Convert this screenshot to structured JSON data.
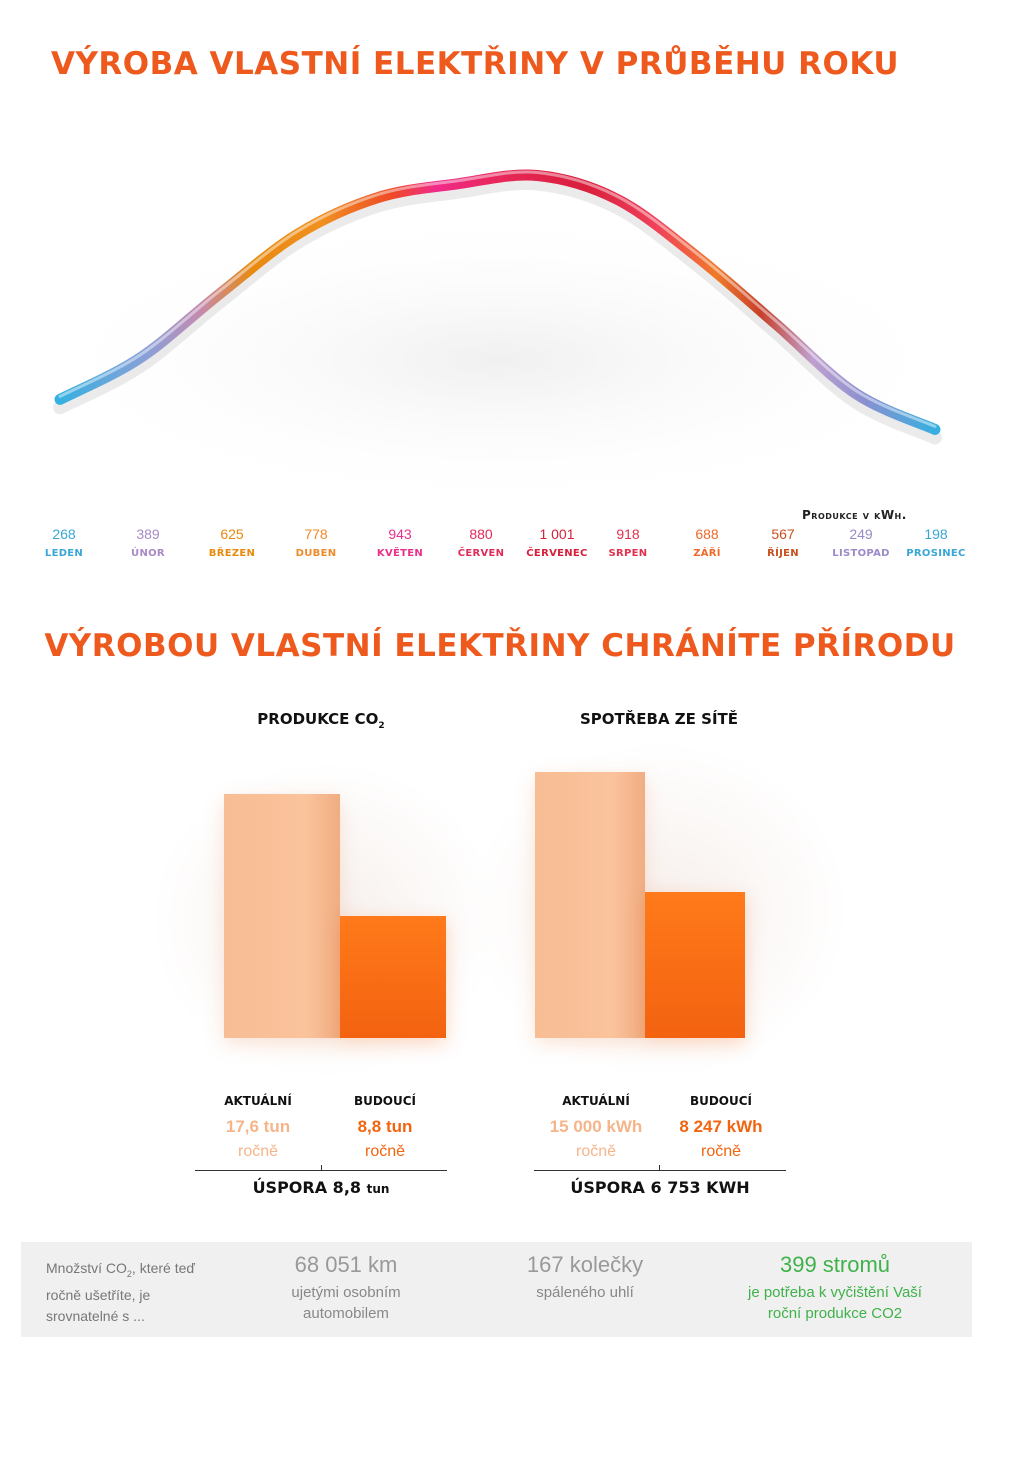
{
  "title1": "VÝROBA VLASTNÍ ELEKTŘINY V PRŮBĚHU ROKU",
  "title2": "VÝROBOU VLASTNÍ ELEKTŘINY CHRÁNÍTE PŘÍRODU",
  "unit_label": "Produkce v kWh.",
  "chart_data": [
    {
      "type": "line",
      "title": "VÝROBA VLASTNÍ ELEKTŘINY V PRŮBĚHU ROKU",
      "ylabel": "Produkce v kWh.",
      "categories": [
        "LEDEN",
        "ÚNOR",
        "BŘEZEN",
        "DUBEN",
        "KVĚTEN",
        "ČERVEN",
        "ČERVENEC",
        "SRPEN",
        "ZÁŘÍ",
        "ŘÍJEN",
        "LISTOPAD",
        "PROSINEC"
      ],
      "values": [
        268,
        389,
        625,
        778,
        943,
        880,
        1001,
        918,
        688,
        567,
        249,
        198
      ],
      "value_labels": [
        "268",
        "389",
        "625",
        "778",
        "943",
        "880",
        "1 001",
        "918",
        "688",
        "567",
        "249",
        "198"
      ],
      "colors": [
        "#3aa6d6",
        "#a88ac4",
        "#e88a0c",
        "#ef8a2a",
        "#e8308a",
        "#e02a5a",
        "#d61f3a",
        "#e0304e",
        "#ef6a2a",
        "#c8501e",
        "#9a8ac8",
        "#3aa6d6"
      ],
      "grid": true
    },
    {
      "type": "bar",
      "title": "PRODUKCE CO₂",
      "categories": [
        "AKTUÁLNÍ",
        "BUDOUCÍ"
      ],
      "values": [
        17.6,
        8.8
      ],
      "value_labels": [
        "17,6 tun",
        "8,8 tun"
      ],
      "unit": "ročně",
      "saving_label": "ÚSPORA 8,8",
      "saving_unit": "tun"
    },
    {
      "type": "bar",
      "title": "SPOTŘEBA ZE SÍTĚ",
      "categories": [
        "AKTUÁLNÍ",
        "BUDOUCÍ"
      ],
      "values": [
        15000,
        8247
      ],
      "value_labels": [
        "15 000 kWh",
        "8 247 kWh"
      ],
      "unit": "ročně",
      "saving_label": "ÚSPORA 6 753 KWH",
      "saving_unit": ""
    }
  ],
  "co2_title_main": "PRODUKCE CO",
  "co2_title_sub": "2",
  "colors": {
    "light": "#f6b489",
    "dark": "#f26410",
    "green": "#3fb24a",
    "title": "#ee5a1e"
  },
  "equivalents": {
    "intro_part1": "Množství CO",
    "intro_sub": "2",
    "intro_part2": ", které teď ročně ušetříte, je srovnatelné s ...",
    "items": [
      {
        "big": "68 051 km",
        "small": "ujetými osobním automobilem"
      },
      {
        "big": "167 kolečky",
        "small": "spáleného uhlí"
      },
      {
        "big": "399 stromů",
        "small": "je potřeba k vyčištění Vaší roční produkce CO2"
      }
    ]
  }
}
